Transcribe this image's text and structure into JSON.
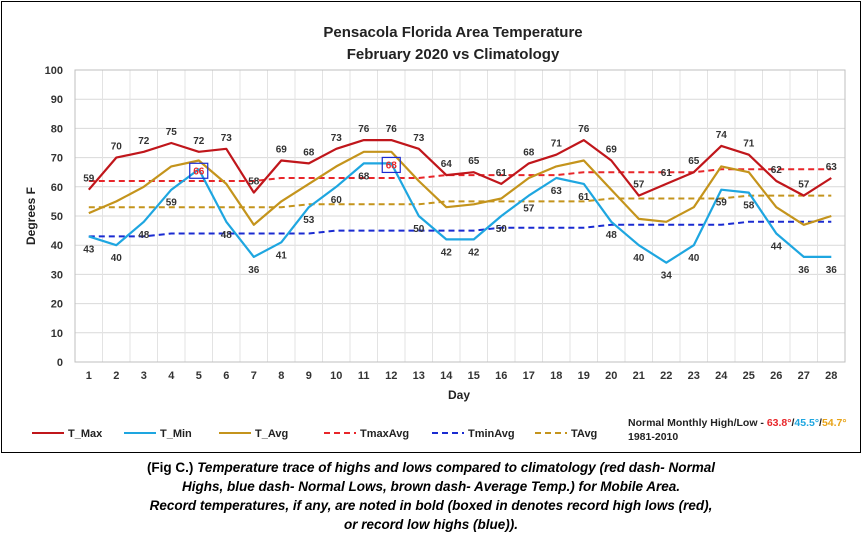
{
  "chart_data": {
    "type": "line",
    "title_line1": "Pensacola Florida Area Temperature",
    "title_line2": "February 2020 vs Climatology",
    "xlabel": "Day",
    "ylabel": "Degrees F",
    "ylim": [
      0,
      100
    ],
    "yticks": [
      0,
      10,
      20,
      30,
      40,
      50,
      60,
      70,
      80,
      90,
      100
    ],
    "x": [
      1,
      2,
      3,
      4,
      5,
      6,
      7,
      8,
      9,
      10,
      11,
      12,
      13,
      14,
      15,
      16,
      17,
      18,
      19,
      20,
      21,
      22,
      23,
      24,
      25,
      26,
      27,
      28
    ],
    "grid": true,
    "series": [
      {
        "name": "T_Max",
        "color": "#c0161b",
        "dash": false,
        "values": [
          59,
          70,
          72,
          75,
          72,
          73,
          58,
          69,
          68,
          73,
          76,
          76,
          73,
          64,
          65,
          61,
          68,
          71,
          76,
          69,
          57,
          61,
          65,
          74,
          71,
          62,
          57,
          63
        ]
      },
      {
        "name": "T_Min",
        "color": "#1ea6e0",
        "dash": false,
        "values": [
          43,
          40,
          48,
          59,
          66,
          48,
          36,
          41,
          53,
          60,
          68,
          68,
          50,
          42,
          42,
          50,
          57,
          63,
          61,
          48,
          40,
          34,
          40,
          59,
          58,
          44,
          36,
          36
        ]
      },
      {
        "name": "T_Avg",
        "color": "#c4941c",
        "dash": false,
        "values": [
          51,
          55,
          60,
          67,
          69,
          61,
          47,
          55,
          61,
          67,
          72,
          72,
          62,
          53,
          54,
          56,
          63,
          67,
          69,
          59,
          49,
          48,
          53,
          67,
          65,
          53,
          47,
          50
        ]
      },
      {
        "name": "TmaxAvg",
        "color": "#e8262a",
        "dash": true,
        "values": [
          62,
          62,
          62,
          62,
          62,
          62,
          62,
          63,
          63,
          63,
          63,
          63,
          63,
          64,
          64,
          64,
          64,
          64,
          65,
          65,
          65,
          65,
          65,
          66,
          66,
          66,
          66,
          66
        ]
      },
      {
        "name": "TminAvg",
        "color": "#1a2bd1",
        "dash": true,
        "values": [
          43,
          43,
          43,
          44,
          44,
          44,
          44,
          44,
          44,
          45,
          45,
          45,
          45,
          45,
          45,
          46,
          46,
          46,
          46,
          47,
          47,
          47,
          47,
          47,
          48,
          48,
          48,
          48
        ]
      },
      {
        "name": "TAvg",
        "color": "#c4941c",
        "dash": true,
        "values": [
          53,
          53,
          53,
          53,
          53,
          53,
          53,
          53,
          54,
          54,
          54,
          54,
          54,
          55,
          55,
          55,
          55,
          55,
          55,
          56,
          56,
          56,
          56,
          56,
          57,
          57,
          57,
          57
        ]
      }
    ],
    "max_labels": [
      "59",
      "70",
      "72",
      "75",
      "72",
      "73",
      "58",
      "69",
      "68",
      "73",
      "76",
      "76",
      "73",
      "64",
      "65",
      "61",
      "68",
      "71",
      "76",
      "69",
      "57",
      "61",
      "65",
      "74",
      "71",
      "62",
      "57",
      "63"
    ],
    "min_labels": [
      "43",
      "40",
      "48",
      "59",
      "66",
      "48",
      "36",
      "41",
      "53",
      "60",
      "68",
      "68",
      "50",
      "42",
      "42",
      "50",
      "57",
      "63",
      "61",
      "48",
      "40",
      "34",
      "40",
      "59",
      "58",
      "44",
      "36",
      "36"
    ],
    "record_boxed_days": [
      5,
      12
    ],
    "record_color": "#e8262a",
    "box_color": "#1a2bd1",
    "legend_placement": "bottom",
    "normals": {
      "line1_prefix": "Normal Monthly High/Low - ",
      "high": "63.8°",
      "sep1": "/",
      "low": "45.5°",
      "sep2": "/",
      "avg": "54.7°",
      "line2": "1981-2010",
      "high_color": "#e8262a",
      "low_color": "#1ea6e0",
      "avg_color": "#e8a317"
    }
  },
  "caption": {
    "lead": "(Fig C.) ",
    "line1": "Temperature trace of highs and lows compared to climatology (red dash- Normal",
    "line2": "Highs, blue dash- Normal Lows, brown dash- Average Temp.) for Mobile Area.",
    "line3": "Record temperatures, if any, are noted in bold (boxed in denotes record high lows (red),",
    "line4": "or record low highs (blue))."
  }
}
